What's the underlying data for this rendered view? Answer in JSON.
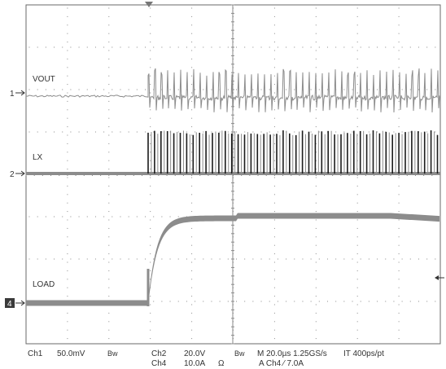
{
  "traces": [
    {
      "marker": "1",
      "label": "VOUT"
    },
    {
      "marker": "2",
      "label": "LX"
    },
    {
      "marker": "4",
      "label": "LOAD"
    }
  ],
  "readout": {
    "ch1": "Ch1",
    "ch1_scale": "50.0mV",
    "bw1": "Bw",
    "ch2": "Ch2",
    "ch2_scale": "20.0V",
    "bw2": "Bw",
    "ch4": "Ch4",
    "ch4_scale": "10.0A",
    "ohm": "Ω",
    "timebase": "M 20.0µs 1.25GS/s",
    "interp": "IT 400ps/pt",
    "trigger": "A  Ch4  ⁄  7.0A"
  },
  "colors": {
    "background": "#ffffff",
    "frame": "#6a6a6a",
    "grid": "#8a8a8a",
    "trace": "#8c8c8c",
    "trace_dark": "#1a1a1a",
    "marker_fill": "#3a3a3a"
  },
  "icons": [
    "trigger-position-arrow-icon",
    "trigger-level-arrow-icon"
  ]
}
